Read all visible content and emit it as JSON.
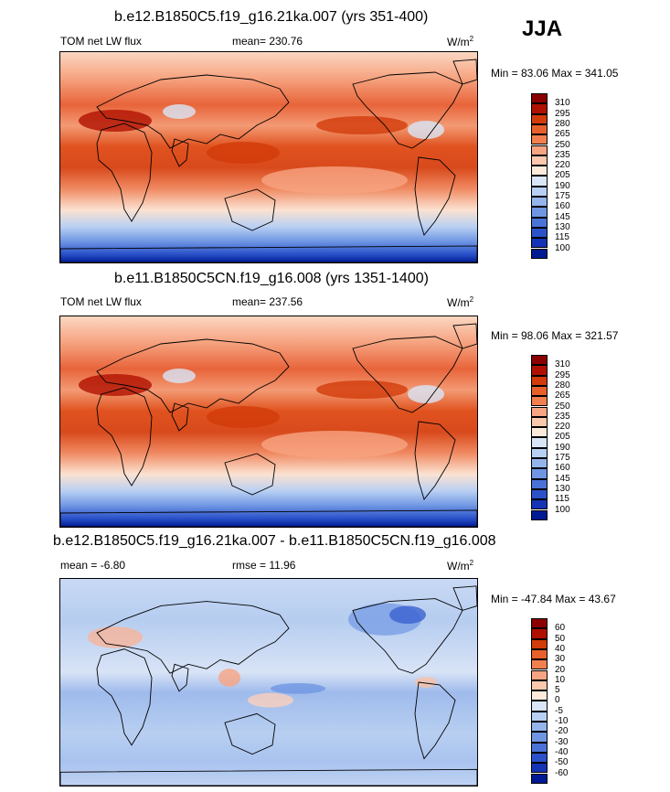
{
  "season": "JJA",
  "panels": [
    {
      "title": "b.e12.B1850C5.f19_g16.21ka.007 (yrs 351-400)",
      "left_label": "TOM net LW flux",
      "center_label": "mean= 230.76",
      "units": "W/m",
      "units_exp": "2",
      "minmax": "Min = 83.06 Max = 341.05",
      "colorbar": {
        "levels": [
          "310",
          "295",
          "280",
          "265",
          "250",
          "235",
          "220",
          "205",
          "190",
          "175",
          "160",
          "145",
          "130",
          "115",
          "100"
        ],
        "colors": [
          "#8b0000",
          "#b01000",
          "#d23b0a",
          "#e8602a",
          "#f2804f",
          "#f7a482",
          "#fbc8ad",
          "#fdeadb",
          "#d8e6f8",
          "#b8d0f3",
          "#94b5ec",
          "#6f96e3",
          "#4a73d8",
          "#2b52c9",
          "#1433b5",
          "#001a93"
        ]
      }
    },
    {
      "title": "b.e11.B1850C5CN.f19_g16.008 (yrs 1351-1400)",
      "left_label": "TOM net LW flux",
      "center_label": "mean= 237.56",
      "units": "W/m",
      "units_exp": "2",
      "minmax": "Min = 98.06 Max = 321.57",
      "colorbar": {
        "levels": [
          "310",
          "295",
          "280",
          "265",
          "250",
          "235",
          "220",
          "205",
          "190",
          "175",
          "160",
          "145",
          "130",
          "115",
          "100"
        ],
        "colors": [
          "#8b0000",
          "#b01000",
          "#d23b0a",
          "#e8602a",
          "#f2804f",
          "#f7a482",
          "#fbc8ad",
          "#fdeadb",
          "#d8e6f8",
          "#b8d0f3",
          "#94b5ec",
          "#6f96e3",
          "#4a73d8",
          "#2b52c9",
          "#1433b5",
          "#001a93"
        ]
      }
    },
    {
      "title": "b.e12.B1850C5.f19_g16.21ka.007 - b.e11.B1850C5CN.f19_g16.008",
      "left_label": "mean =  -6.80",
      "center_label": "rmse =  11.96",
      "units": "W/m",
      "units_exp": "2",
      "minmax": "Min = -47.84 Max =  43.67",
      "colorbar": {
        "levels": [
          "60",
          "50",
          "40",
          "30",
          "20",
          "10",
          "5",
          "0",
          "-5",
          "-10",
          "-20",
          "-30",
          "-40",
          "-50",
          "-60"
        ],
        "colors": [
          "#8b0000",
          "#b01000",
          "#d23b0a",
          "#e8602a",
          "#f2804f",
          "#f7a482",
          "#fbc8ad",
          "#fdeadb",
          "#d8e6f8",
          "#b8d0f3",
          "#94b5ec",
          "#6f96e3",
          "#4a73d8",
          "#2b52c9",
          "#1433b5",
          "#001a93"
        ]
      }
    }
  ],
  "chart_data": [
    {
      "type": "heatmap",
      "title": "b.e12.B1850C5.f19_g16.21ka.007 (yrs 351-400)",
      "variable": "TOM net LW flux",
      "mean": 230.76,
      "min": 83.06,
      "max": 341.05,
      "units": "W/m2"
    },
    {
      "type": "heatmap",
      "title": "b.e11.B1850C5CN.f19_g16.008 (yrs 1351-1400)",
      "variable": "TOM net LW flux",
      "mean": 237.56,
      "min": 98.06,
      "max": 321.57,
      "units": "W/m2"
    },
    {
      "type": "heatmap",
      "title": "b.e12.B1850C5.f19_g16.21ka.007 - b.e11.B1850C5CN.f19_g16.008",
      "mean": -6.8,
      "rmse": 11.96,
      "min": -47.84,
      "max": 43.67,
      "units": "W/m2"
    }
  ]
}
